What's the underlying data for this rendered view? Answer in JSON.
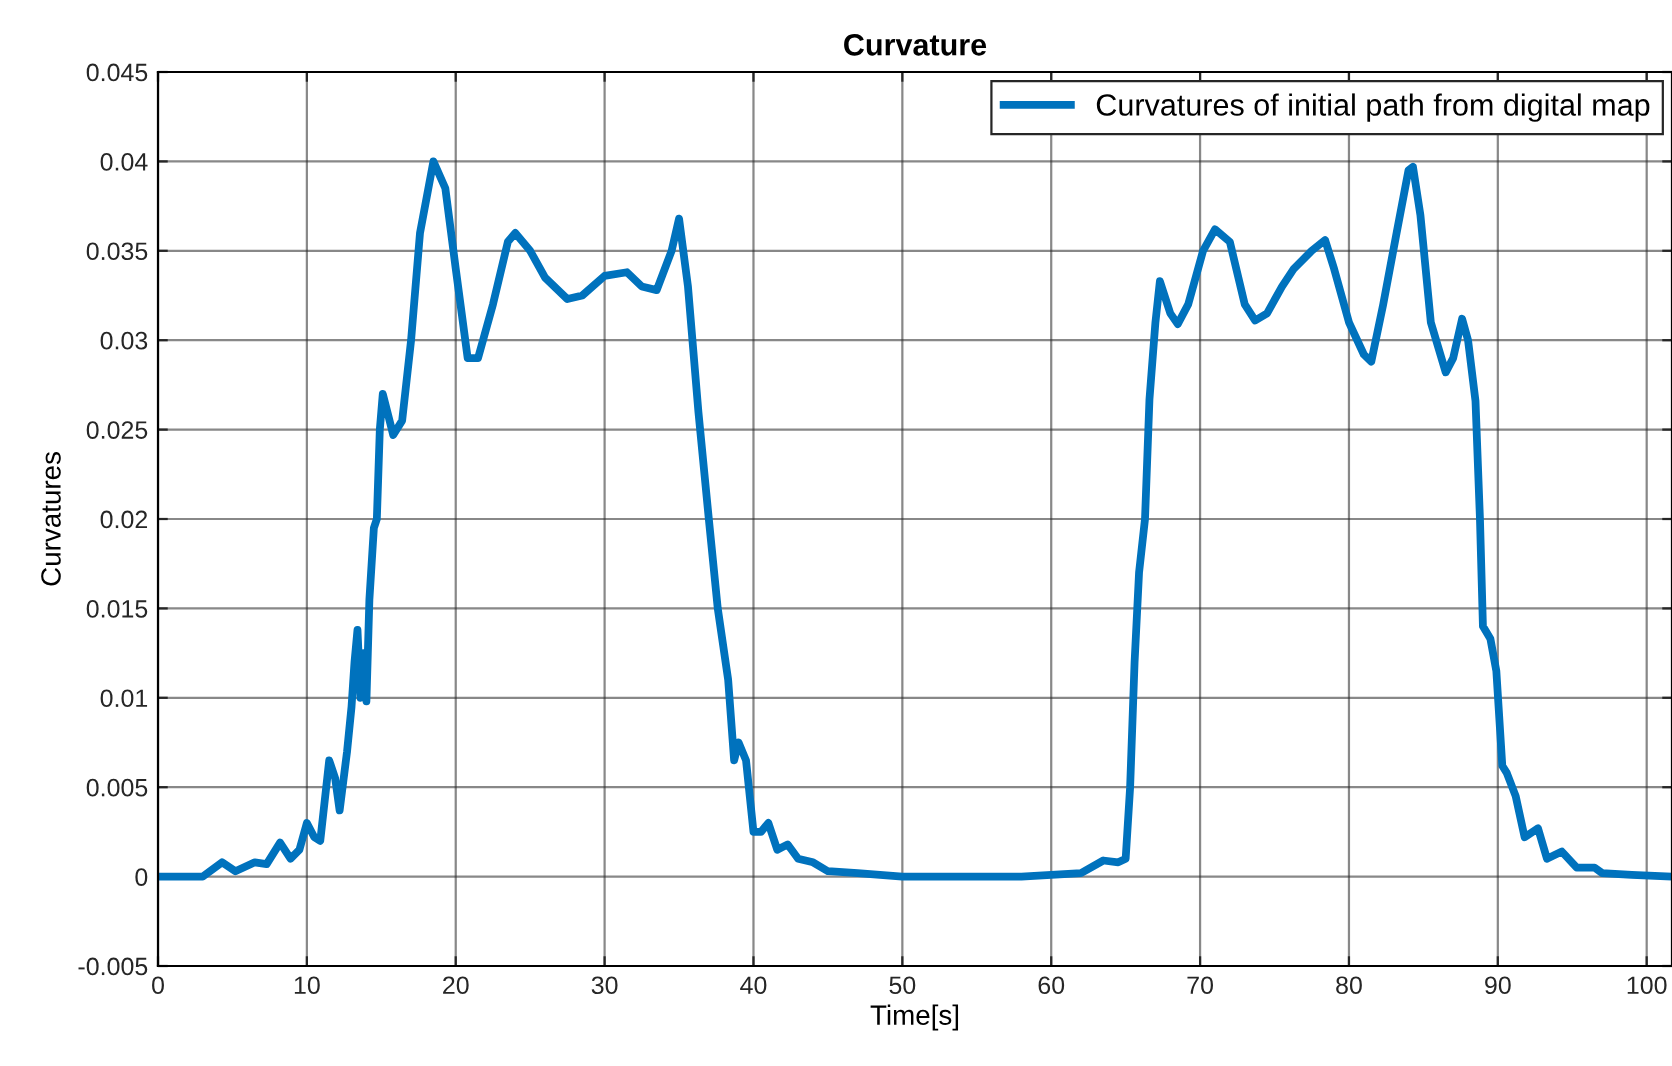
{
  "chart_data": {
    "type": "line",
    "title": "Curvature",
    "xlabel": "Time[s]",
    "ylabel": "Curvatures",
    "xlim": [
      0,
      101.7
    ],
    "xticks": [
      0,
      10,
      20,
      30,
      40,
      50,
      60,
      70,
      80,
      90,
      100
    ],
    "ylim": [
      -0.005,
      0.045
    ],
    "yticks": [
      -0.005,
      0,
      0.005,
      0.01,
      0.015,
      0.02,
      0.025,
      0.03,
      0.035,
      0.04,
      0.045
    ],
    "grid": true,
    "legend": "top right",
    "series": [
      {
        "name": "Curvatures of initial path from digital map",
        "color": "#0072bd",
        "x": [
          0,
          3,
          4.3,
          5.2,
          6.5,
          7.3,
          8.2,
          8.9,
          9.5,
          10,
          10.5,
          10.9,
          11.5,
          11.9,
          12.2,
          12.7,
          13,
          13.2,
          13.4,
          13.6,
          13.8,
          14,
          14.2,
          14.5,
          14.7,
          14.9,
          15.1,
          15.8,
          16.4,
          17,
          17.6,
          18.5,
          19.3,
          20,
          20.8,
          21.5,
          22.5,
          23.5,
          24,
          25,
          26,
          27.5,
          28.5,
          30,
          31.5,
          32.5,
          33.5,
          34.5,
          35,
          35.6,
          36.3,
          37,
          37.6,
          38.3,
          38.7,
          39,
          39.5,
          40,
          40.5,
          41,
          41.6,
          42.3,
          43,
          44,
          45,
          47,
          50,
          55,
          58,
          60,
          62,
          63.5,
          64.5,
          65,
          65.3,
          65.6,
          65.9,
          66.3,
          66.6,
          67,
          67.3,
          68,
          68.5,
          69.2,
          70.2,
          71,
          72,
          73,
          73.7,
          74.5,
          75.5,
          76.3,
          77.5,
          78.4,
          79,
          80,
          81,
          81.5,
          82.3,
          83.2,
          84,
          84.3,
          84.8,
          85.5,
          86.5,
          87,
          87.6,
          88,
          88.5,
          88.8,
          89,
          89.5,
          89.9,
          90.3,
          90.6,
          91.2,
          91.8,
          92.7,
          93.3,
          94.3,
          95.3,
          96.5,
          97,
          99,
          101.7
        ],
        "values": [
          0,
          0,
          0.0008,
          0.0003,
          0.0008,
          0.0007,
          0.0019,
          0.001,
          0.0015,
          0.003,
          0.0022,
          0.002,
          0.0065,
          0.0055,
          0.0037,
          0.007,
          0.0095,
          0.012,
          0.0138,
          0.01,
          0.0125,
          0.0098,
          0.0155,
          0.0195,
          0.02,
          0.025,
          0.027,
          0.0247,
          0.0255,
          0.03,
          0.036,
          0.04,
          0.0385,
          0.034,
          0.029,
          0.029,
          0.032,
          0.0355,
          0.036,
          0.035,
          0.0335,
          0.0323,
          0.0325,
          0.0336,
          0.0338,
          0.033,
          0.0328,
          0.035,
          0.0368,
          0.033,
          0.026,
          0.02,
          0.015,
          0.011,
          0.0065,
          0.0075,
          0.0065,
          0.0025,
          0.0025,
          0.003,
          0.0015,
          0.0018,
          0.001,
          0.0008,
          0.0003,
          0.0002,
          0,
          0,
          0,
          0.0001,
          0.0002,
          0.0009,
          0.0008,
          0.001,
          0.005,
          0.012,
          0.017,
          0.02,
          0.0267,
          0.031,
          0.0333,
          0.0315,
          0.0309,
          0.032,
          0.035,
          0.0362,
          0.0355,
          0.032,
          0.0311,
          0.0315,
          0.033,
          0.034,
          0.035,
          0.0356,
          0.034,
          0.031,
          0.0292,
          0.0288,
          0.032,
          0.036,
          0.0395,
          0.0397,
          0.037,
          0.031,
          0.0282,
          0.029,
          0.0312,
          0.03,
          0.0266,
          0.02,
          0.014,
          0.0133,
          0.0115,
          0.0062,
          0.0058,
          0.0045,
          0.0022,
          0.0027,
          0.001,
          0.0014,
          0.0005,
          0.0005,
          0.0002,
          0.0001,
          0
        ]
      }
    ]
  }
}
